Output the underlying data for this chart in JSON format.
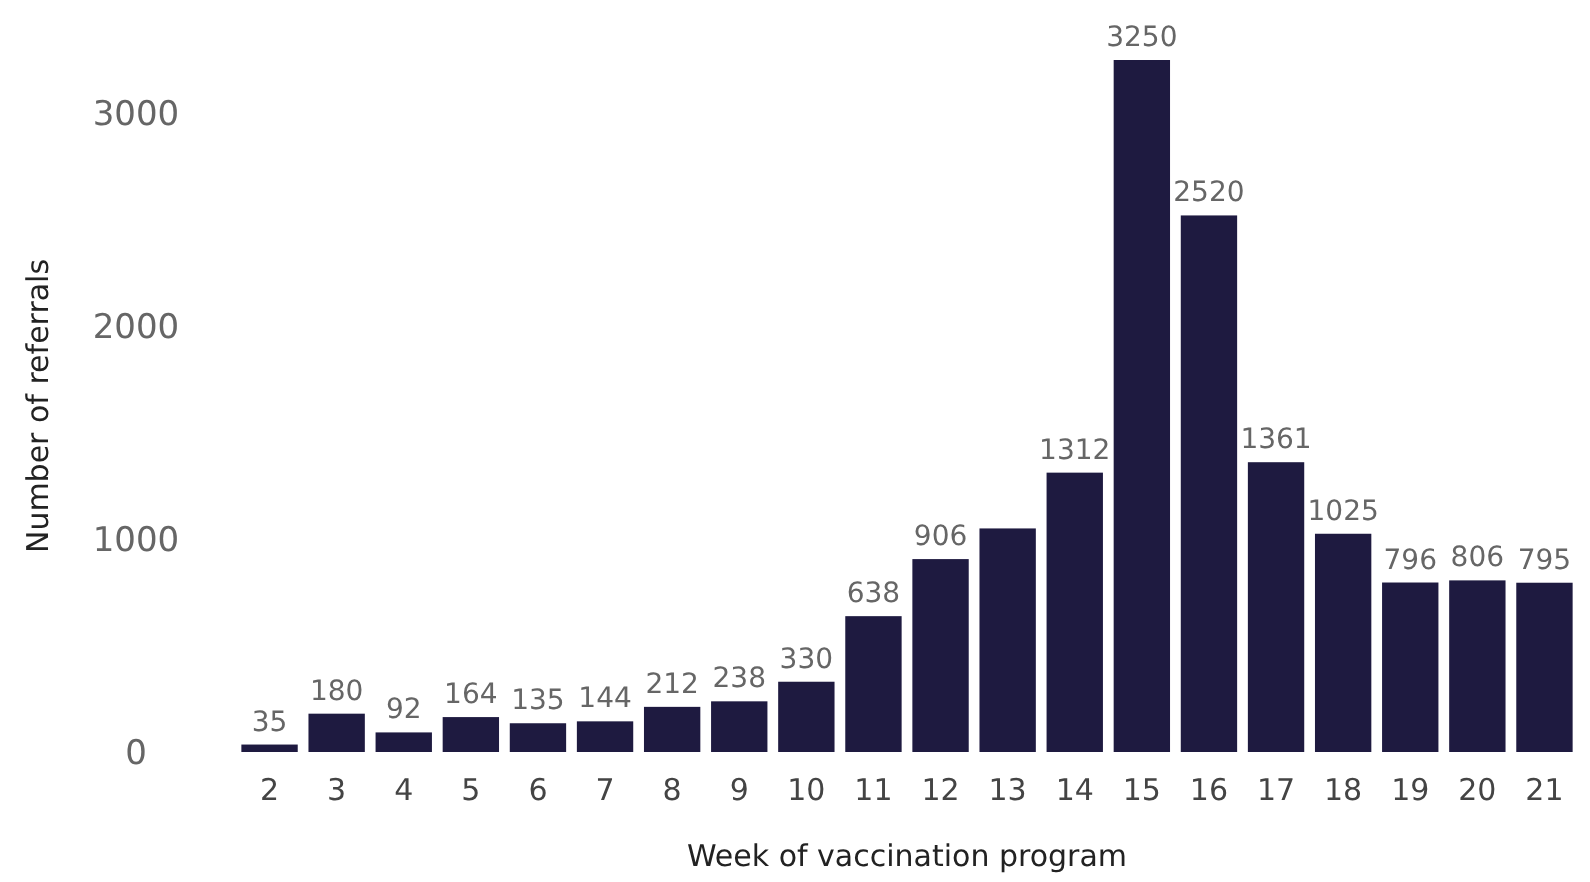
{
  "chart_data": {
    "type": "bar",
    "xlabel": "Week of vaccination program",
    "ylabel": "Number of referrals",
    "categories": [
      "2",
      "3",
      "4",
      "5",
      "6",
      "7",
      "8",
      "9",
      "10",
      "11",
      "12",
      "13",
      "14",
      "15",
      "16",
      "17",
      "18",
      "19",
      "20",
      "21"
    ],
    "values": [
      35,
      180,
      92,
      164,
      135,
      144,
      212,
      238,
      330,
      638,
      906,
      1050,
      1312,
      3250,
      2520,
      1361,
      1025,
      796,
      806,
      795
    ],
    "value_labels": [
      "35",
      "180",
      "92",
      "164",
      "135",
      "144",
      "212",
      "238",
      "330",
      "638",
      "906",
      null,
      "1312",
      "3250",
      "2520",
      "1361",
      "1025",
      "796",
      "806",
      "795"
    ],
    "color": "#1e1a40",
    "ylim": [
      0,
      3250
    ],
    "yticks": [
      0,
      1000,
      2000,
      3000
    ],
    "grid": false
  }
}
